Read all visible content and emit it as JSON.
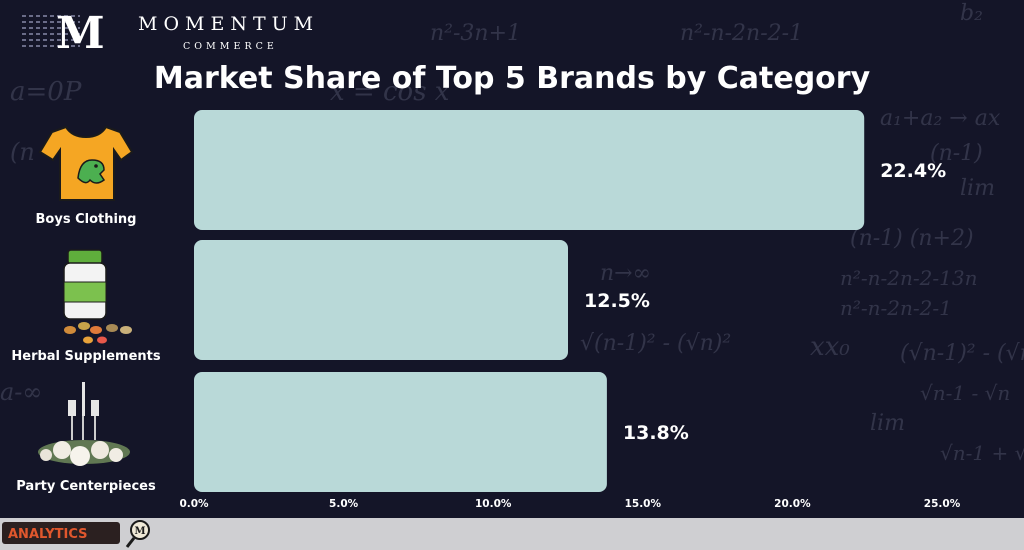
{
  "brand": {
    "logo_letter": "M",
    "name": "MOMENTUM",
    "sub": "COMMERCE"
  },
  "footer": {
    "badge": "ANALYTICS",
    "seal_letter": "M"
  },
  "colors": {
    "background": "#141528",
    "bar": "#b9d9d8",
    "text": "#ffffff",
    "footer_bar": "#cfcfd2"
  },
  "chart_data": {
    "type": "bar",
    "orientation": "horizontal",
    "title": "Market Share of Top 5 Brands by Category",
    "categories": [
      "Boys Clothing",
      "Herbal Supplements",
      "Party Centerpieces"
    ],
    "values": [
      22.4,
      12.5,
      13.8
    ],
    "value_labels": [
      "22.4%",
      "12.5%",
      "13.8%"
    ],
    "xlim": [
      0,
      25
    ],
    "xticks": [
      0,
      5,
      10,
      15,
      20,
      25
    ],
    "xtick_labels": [
      "0.0%",
      "5.0%",
      "10.0%",
      "15.0%",
      "20.0%",
      "25.0%"
    ],
    "category_icons": [
      "t-shirt-dinosaur-icon",
      "supplement-bottle-icon",
      "candle-centerpiece-icon"
    ],
    "grid": false,
    "legend": "none"
  }
}
